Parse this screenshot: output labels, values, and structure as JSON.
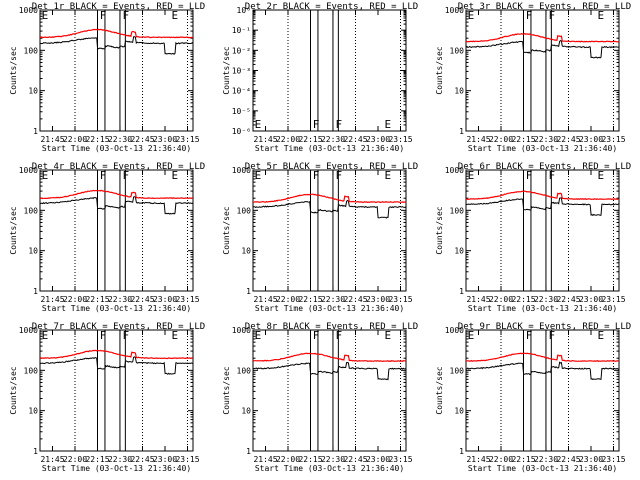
{
  "figure": {
    "panels": [
      {
        "title": "Det 1r BLACK = Events, RED = LLD",
        "ylabel": "Counts/sec",
        "xlabel": "Start Time (03-Oct-13 21:36:40)",
        "markers": [
          "E",
          "F",
          "F",
          "E"
        ],
        "mode": "log",
        "ytick_labels": [
          "1",
          "10",
          "100",
          "1000"
        ],
        "events_level": 150,
        "lld_level": 210
      },
      {
        "title": "Det 2r BLACK = Events, RED = LLD",
        "ylabel": "Counts/sec",
        "xlabel": "Start Time (03-Oct-13 21:36:40)",
        "markers": [
          "E",
          "F",
          "F",
          "E"
        ],
        "mode": "small",
        "ytick_labels": [
          "10⁻⁶",
          "10⁻⁵",
          "10⁻⁴",
          "10⁻³",
          "10⁻²",
          "10⁻¹",
          "10⁰"
        ]
      },
      {
        "title": "Det 3r BLACK = Events, RED = LLD",
        "ylabel": "Counts/sec",
        "xlabel": "Start Time (03-Oct-13 21:36:40)",
        "markers": [
          "E",
          "F",
          "F",
          "E"
        ],
        "mode": "log",
        "ytick_labels": [
          "1",
          "10",
          "100",
          "1000"
        ],
        "events_level": 120,
        "lld_level": 165
      },
      {
        "title": "Det 4r BLACK = Events, RED = LLD",
        "ylabel": "Counts/sec",
        "xlabel": "Start Time (03-Oct-13 21:36:40)",
        "markers": [
          "E",
          "F",
          "F",
          "E"
        ],
        "mode": "log",
        "ytick_labels": [
          "1",
          "10",
          "100",
          "1000"
        ],
        "events_level": 150,
        "lld_level": 200
      },
      {
        "title": "Det 5r BLACK = Events, RED = LLD",
        "ylabel": "Counts/sec",
        "xlabel": "Start Time (03-Oct-13 21:36:40)",
        "markers": [
          "E",
          "F",
          "F",
          "E"
        ],
        "mode": "log",
        "ytick_labels": [
          "1",
          "10",
          "100",
          "1000"
        ],
        "events_level": 120,
        "lld_level": 160
      },
      {
        "title": "Det 6r BLACK = Events, RED = LLD",
        "ylabel": "Counts/sec",
        "xlabel": "Start Time (03-Oct-13 21:36:40)",
        "markers": [
          "E",
          "F",
          "F",
          "E"
        ],
        "mode": "log",
        "ytick_labels": [
          "1",
          "10",
          "100",
          "1000"
        ],
        "events_level": 140,
        "lld_level": 190
      },
      {
        "title": "Det 7r BLACK = Events, RED = LLD",
        "ylabel": "Counts/sec",
        "xlabel": "Start Time (03-Oct-13 21:36:40)",
        "markers": [
          "E",
          "F",
          "F",
          "E"
        ],
        "mode": "log",
        "ytick_labels": [
          "1",
          "10",
          "100",
          "1000"
        ],
        "events_level": 150,
        "lld_level": 200
      },
      {
        "title": "Det 8r BLACK = Events, RED = LLD",
        "ylabel": "Counts/sec",
        "xlabel": "Start Time (03-Oct-13 21:36:40)",
        "markers": [
          "E",
          "F",
          "F",
          "E"
        ],
        "mode": "log",
        "ytick_labels": [
          "1",
          "10",
          "100",
          "1000"
        ],
        "events_level": 110,
        "lld_level": 170
      },
      {
        "title": "Det 9r BLACK = Events, RED = LLD",
        "ylabel": "Counts/sec",
        "xlabel": "Start Time (03-Oct-13 21:36:40)",
        "markers": [
          "E",
          "F",
          "F",
          "E"
        ],
        "mode": "log",
        "ytick_labels": [
          "1",
          "10",
          "100",
          "1000"
        ],
        "events_level": 110,
        "lld_level": 170
      }
    ]
  },
  "chart_data": [
    {
      "type": "line",
      "title": "Det 1r BLACK = Events, RED = LLD",
      "xlabel": "Start Time (03-Oct-13 21:36:40)",
      "ylabel": "Counts/sec",
      "x_tick_labels": [
        "21:45",
        "22:00",
        "22:15",
        "22:30",
        "22:45",
        "23:00",
        "23:15"
      ],
      "y_scale": "log",
      "ylim": [
        1,
        1000
      ],
      "series": [
        {
          "name": "Events",
          "color": "#000000",
          "level": 150
        },
        {
          "name": "LLD",
          "color": "#ff0000",
          "level": 210
        }
      ]
    },
    {
      "type": "line",
      "title": "Det 2r BLACK = Events, RED = LLD",
      "xlabel": "Start Time (03-Oct-13 21:36:40)",
      "ylabel": "Counts/sec",
      "x_tick_labels": [
        "21:45",
        "22:00",
        "22:15",
        "22:30",
        "22:45",
        "23:00",
        "23:15"
      ],
      "y_scale": "log",
      "ylim": [
        1e-06,
        1
      ],
      "series": []
    },
    {
      "type": "line",
      "title": "Det 3r BLACK = Events, RED = LLD",
      "xlabel": "Start Time (03-Oct-13 21:36:40)",
      "ylabel": "Counts/sec",
      "x_tick_labels": [
        "21:45",
        "22:00",
        "22:15",
        "22:30",
        "22:45",
        "23:00",
        "23:15"
      ],
      "y_scale": "log",
      "ylim": [
        1,
        1000
      ],
      "series": [
        {
          "name": "Events",
          "color": "#000000",
          "level": 120
        },
        {
          "name": "LLD",
          "color": "#ff0000",
          "level": 165
        }
      ]
    },
    {
      "type": "line",
      "title": "Det 4r BLACK = Events, RED = LLD",
      "xlabel": "Start Time (03-Oct-13 21:36:40)",
      "ylabel": "Counts/sec",
      "x_tick_labels": [
        "21:45",
        "22:00",
        "22:15",
        "22:30",
        "22:45",
        "23:00",
        "23:15"
      ],
      "y_scale": "log",
      "ylim": [
        1,
        1000
      ],
      "series": [
        {
          "name": "Events",
          "color": "#000000",
          "level": 150
        },
        {
          "name": "LLD",
          "color": "#ff0000",
          "level": 200
        }
      ]
    },
    {
      "type": "line",
      "title": "Det 5r BLACK = Events, RED = LLD",
      "xlabel": "Start Time (03-Oct-13 21:36:40)",
      "ylabel": "Counts/sec",
      "x_tick_labels": [
        "21:45",
        "22:00",
        "22:15",
        "22:30",
        "22:45",
        "23:00",
        "23:15"
      ],
      "y_scale": "log",
      "ylim": [
        1,
        1000
      ],
      "series": [
        {
          "name": "Events",
          "color": "#000000",
          "level": 120
        },
        {
          "name": "LLD",
          "color": "#ff0000",
          "level": 160
        }
      ]
    },
    {
      "type": "line",
      "title": "Det 6r BLACK = Events, RED = LLD",
      "xlabel": "Start Time (03-Oct-13 21:36:40)",
      "ylabel": "Counts/sec",
      "x_tick_labels": [
        "21:45",
        "22:00",
        "22:15",
        "22:30",
        "22:45",
        "23:00",
        "23:15"
      ],
      "y_scale": "log",
      "ylim": [
        1,
        1000
      ],
      "series": [
        {
          "name": "Events",
          "color": "#000000",
          "level": 140
        },
        {
          "name": "LLD",
          "color": "#ff0000",
          "level": 190
        }
      ]
    },
    {
      "type": "line",
      "title": "Det 7r BLACK = Events, RED = LLD",
      "xlabel": "Start Time (03-Oct-13 21:36:40)",
      "ylabel": "Counts/sec",
      "x_tick_labels": [
        "21:45",
        "22:00",
        "22:15",
        "22:30",
        "22:45",
        "23:00",
        "23:15"
      ],
      "y_scale": "log",
      "ylim": [
        1,
        1000
      ],
      "series": [
        {
          "name": "Events",
          "color": "#000000",
          "level": 150
        },
        {
          "name": "LLD",
          "color": "#ff0000",
          "level": 200
        }
      ]
    },
    {
      "type": "line",
      "title": "Det 8r BLACK = Events, RED = LLD",
      "xlabel": "Start Time (03-Oct-13 21:36:40)",
      "ylabel": "Counts/sec",
      "x_tick_labels": [
        "21:45",
        "22:00",
        "22:15",
        "22:30",
        "22:45",
        "23:00",
        "23:15"
      ],
      "y_scale": "log",
      "ylim": [
        1,
        1000
      ],
      "series": [
        {
          "name": "Events",
          "color": "#000000",
          "level": 110
        },
        {
          "name": "LLD",
          "color": "#ff0000",
          "level": 170
        }
      ]
    },
    {
      "type": "line",
      "title": "Det 9r BLACK = Events, RED = LLD",
      "xlabel": "Start Time (03-Oct-13 21:36:40)",
      "ylabel": "Counts/sec",
      "x_tick_labels": [
        "21:45",
        "22:00",
        "22:15",
        "22:30",
        "22:45",
        "23:00",
        "23:15"
      ],
      "y_scale": "log",
      "ylim": [
        1,
        1000
      ],
      "series": [
        {
          "name": "Events",
          "color": "#000000",
          "level": 110
        },
        {
          "name": "LLD",
          "color": "#ff0000",
          "level": 170
        }
      ]
    }
  ]
}
